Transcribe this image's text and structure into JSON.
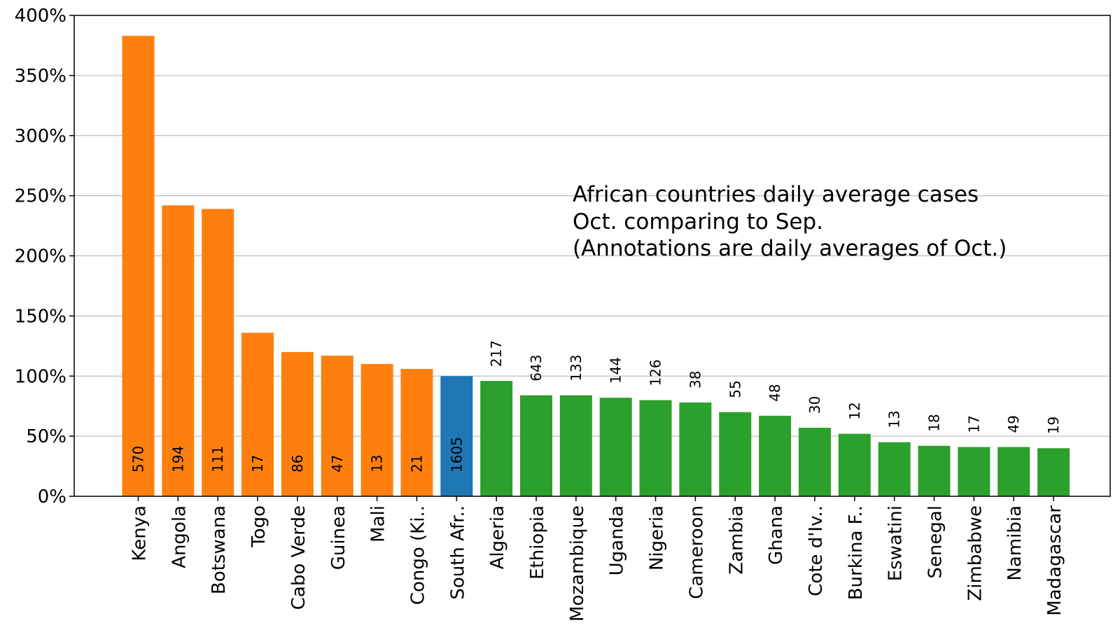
{
  "chart_data": {
    "type": "bar",
    "title_lines": [
      "African countries daily average cases",
      "Oct. comparing to Sep.",
      "(Annotations are daily averages of Oct.)"
    ],
    "xlabel": "",
    "ylabel": "",
    "ylim": [
      0,
      4.0
    ],
    "yticks": [
      0,
      0.5,
      1.0,
      1.5,
      2.0,
      2.5,
      3.0,
      3.5,
      4.0
    ],
    "ytick_labels": [
      "0%",
      "50%",
      "100%",
      "150%",
      "200%",
      "250%",
      "300%",
      "350%",
      "400%"
    ],
    "grid": "y",
    "legend": "none",
    "colors": {
      "increase": "#ff7f0e",
      "reference": "#1f77b4",
      "lower": "#2ca02c",
      "grid": "#b0b0b0",
      "axis": "#000000"
    },
    "categories": [
      "Kenya",
      "Angola",
      "Botswana",
      "Togo",
      "Cabo Verde",
      "Guinea",
      "Mali",
      "Congo (Ki..",
      "South Afr..",
      "Algeria",
      "Ethiopia",
      "Mozambique",
      "Uganda",
      "Nigeria",
      "Cameroon",
      "Zambia",
      "Ghana",
      "Cote d'Iv..",
      "Burkina F..",
      "Eswatini",
      "Senegal",
      "Zimbabwe",
      "Namibia",
      "Madagascar"
    ],
    "values": [
      3.83,
      2.42,
      2.39,
      1.36,
      1.2,
      1.17,
      1.1,
      1.06,
      1.0,
      0.96,
      0.84,
      0.84,
      0.82,
      0.8,
      0.78,
      0.7,
      0.67,
      0.57,
      0.52,
      0.45,
      0.42,
      0.41,
      0.41,
      0.4
    ],
    "groups": [
      "increase",
      "increase",
      "increase",
      "increase",
      "increase",
      "increase",
      "increase",
      "increase",
      "reference",
      "lower",
      "lower",
      "lower",
      "lower",
      "lower",
      "lower",
      "lower",
      "lower",
      "lower",
      "lower",
      "lower",
      "lower",
      "lower",
      "lower",
      "lower"
    ],
    "annotations": [
      "570",
      "194",
      "111",
      "17",
      "86",
      "47",
      "13",
      "21",
      "1605",
      "217",
      "643",
      "133",
      "144",
      "126",
      "38",
      "55",
      "48",
      "30",
      "12",
      "13",
      "18",
      "17",
      "49",
      "19"
    ]
  }
}
